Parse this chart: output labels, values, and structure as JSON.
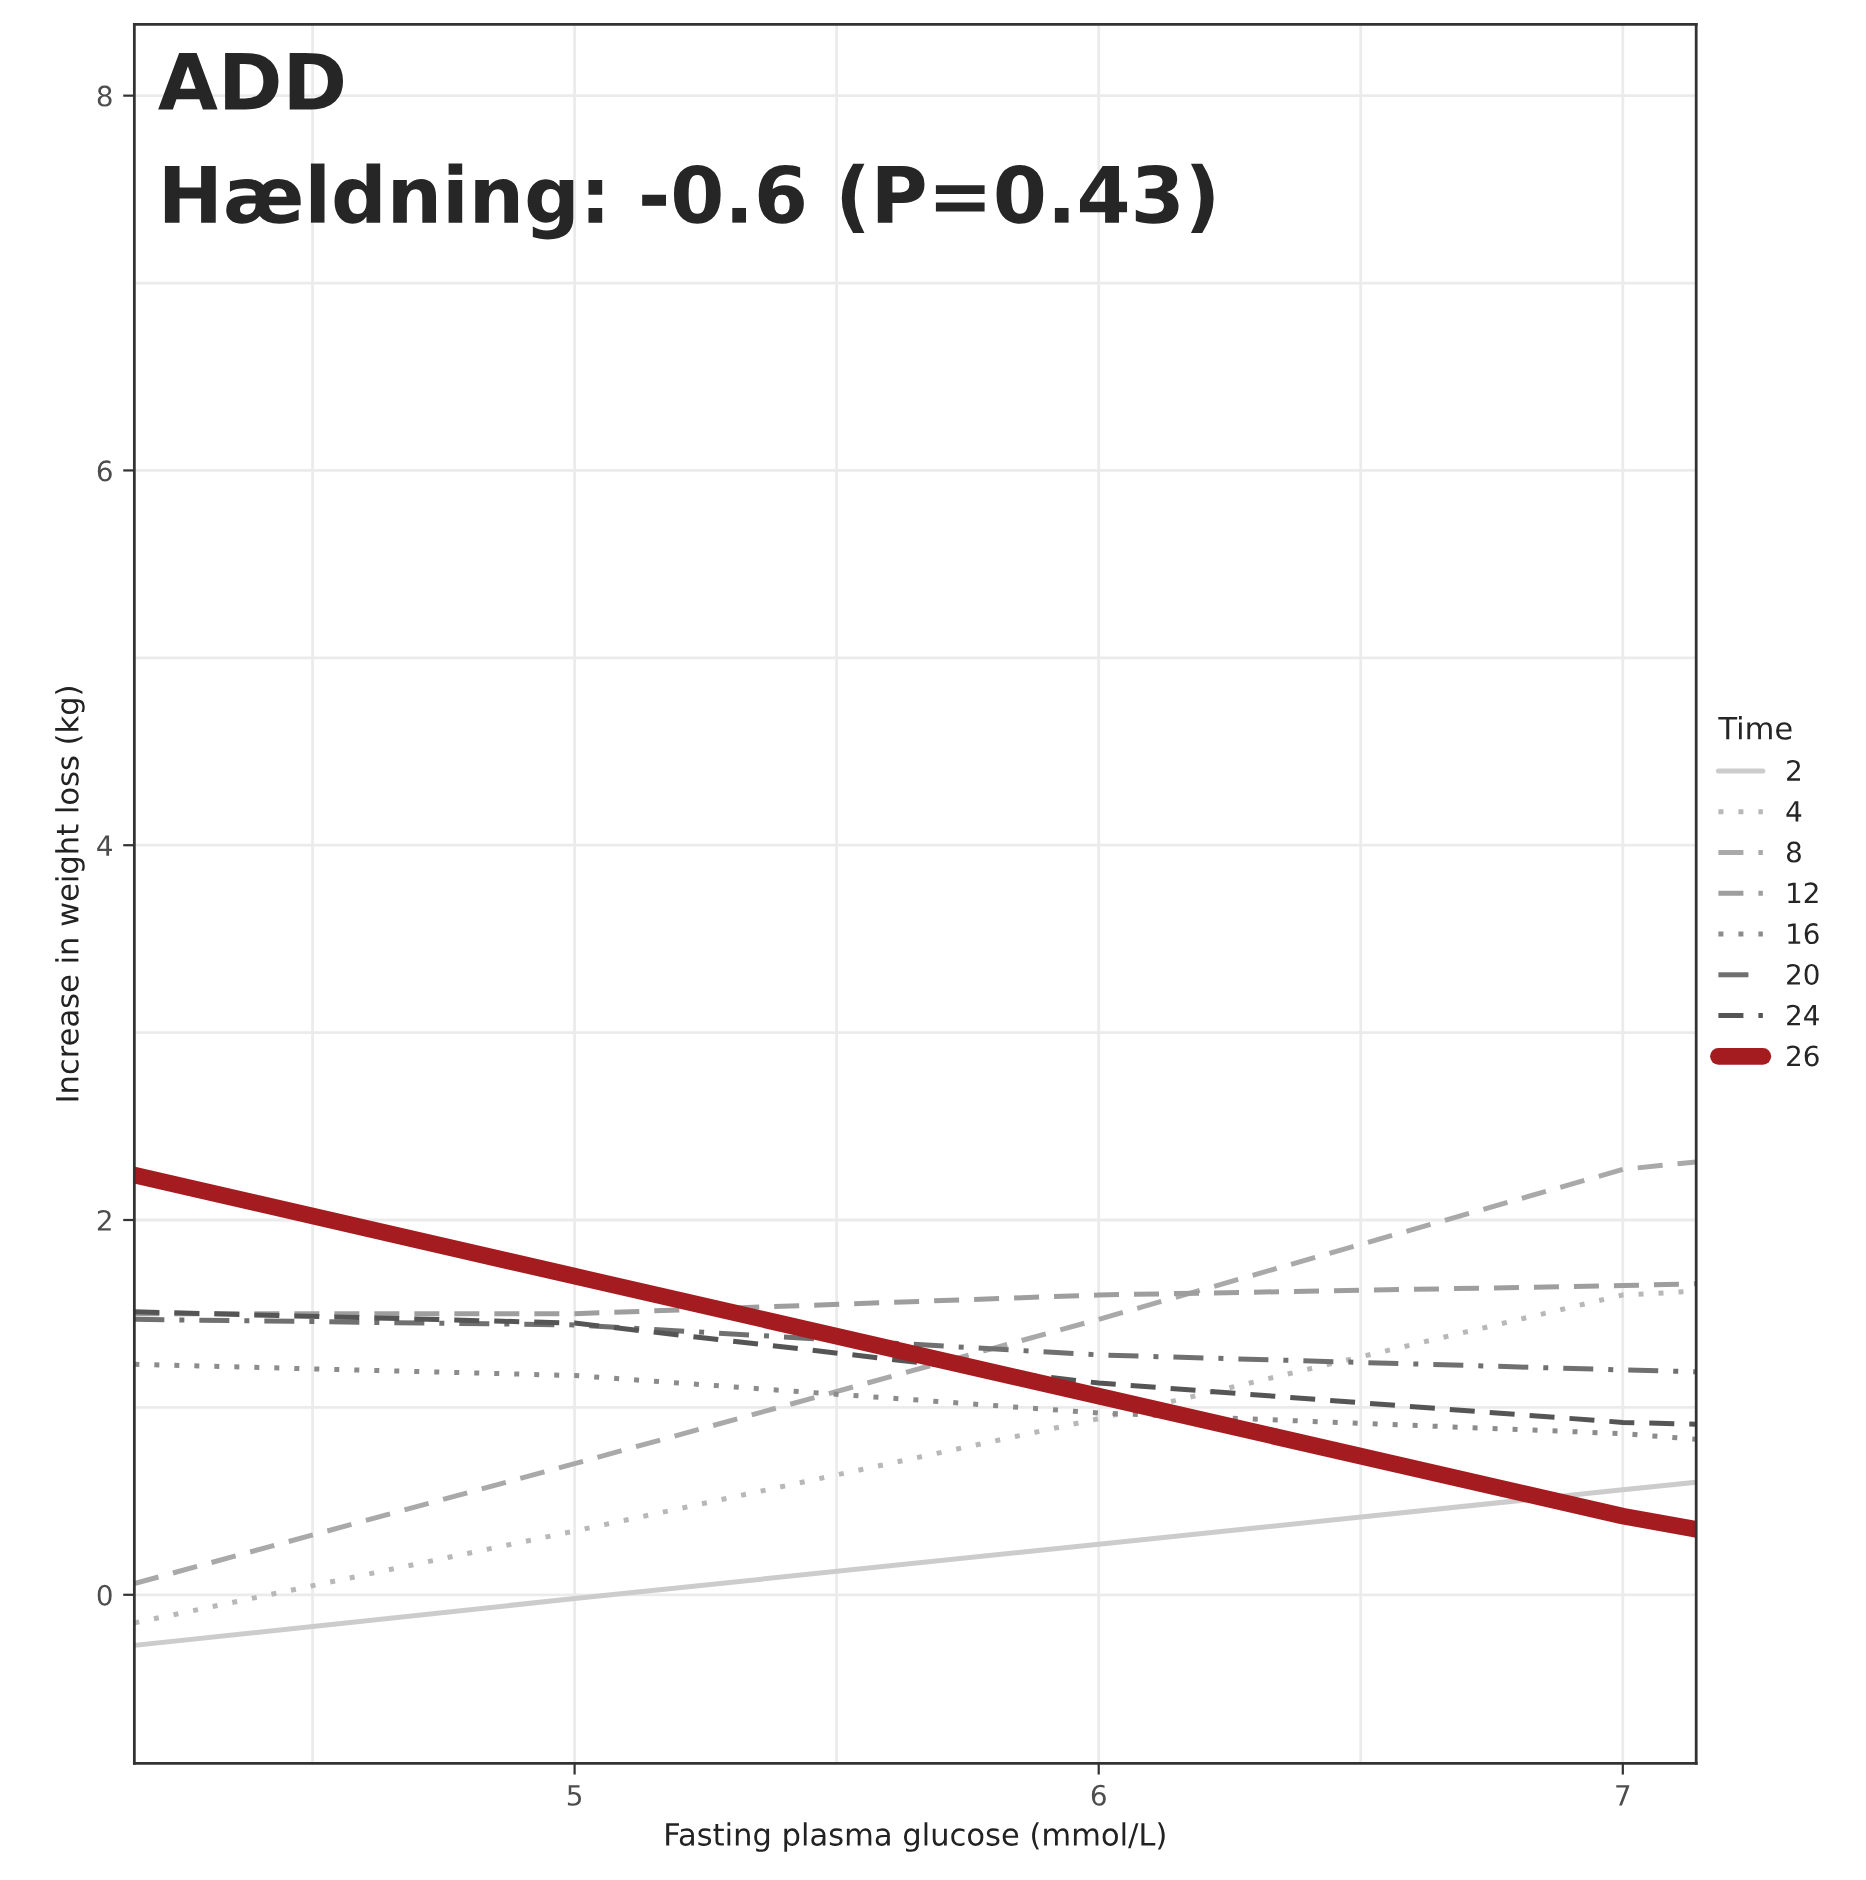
{
  "chart_data": {
    "type": "line",
    "title": "ADD",
    "subtitle": "Hældning: -0.6 (P=0.43)",
    "xlabel": "Fasting plasma glucose (mmol/L)",
    "ylabel": "Increase in weight loss (kg)",
    "legend_title": "Time",
    "x": [
      4.16,
      5,
      6,
      7,
      7.14
    ],
    "series": [
      {
        "name": "2",
        "color": "#cccccc",
        "line_style": "solid",
        "values": [
          -0.27,
          -0.02,
          0.27,
          0.56,
          0.6
        ]
      },
      {
        "name": "4",
        "color": "#b8b8b8",
        "line_style": "dotted",
        "values": [
          -0.15,
          0.34,
          0.94,
          1.6,
          1.62
        ]
      },
      {
        "name": "8",
        "color": "#a9a9a9",
        "line_style": "dashed",
        "values": [
          0.06,
          0.7,
          1.47,
          2.27,
          2.31
        ]
      },
      {
        "name": "12",
        "color": "#9e9e9e",
        "line_style": "dashed",
        "values": [
          1.5,
          1.5,
          1.6,
          1.65,
          1.66
        ]
      },
      {
        "name": "16",
        "color": "#8c8c8c",
        "line_style": "dotted",
        "values": [
          1.23,
          1.17,
          0.97,
          0.86,
          0.83
        ]
      },
      {
        "name": "20",
        "color": "#707070",
        "line_style": "dashdot",
        "values": [
          1.47,
          1.44,
          1.28,
          1.2,
          1.19
        ]
      },
      {
        "name": "24",
        "color": "#555555",
        "line_style": "dashed",
        "values": [
          1.51,
          1.45,
          1.13,
          0.92,
          0.91
        ]
      },
      {
        "name": "26",
        "color": "#a51c20",
        "line_style": "solid",
        "values": [
          2.24,
          1.7,
          1.06,
          0.42,
          0.35
        ]
      }
    ],
    "xlim": [
      4.16,
      7.14
    ],
    "ylim": [
      -0.9,
      8.38
    ],
    "xticks": [
      5,
      6,
      7
    ],
    "yticks": [
      0,
      2,
      4,
      6,
      8
    ],
    "grid": true,
    "legend": "right",
    "marker": "none"
  }
}
